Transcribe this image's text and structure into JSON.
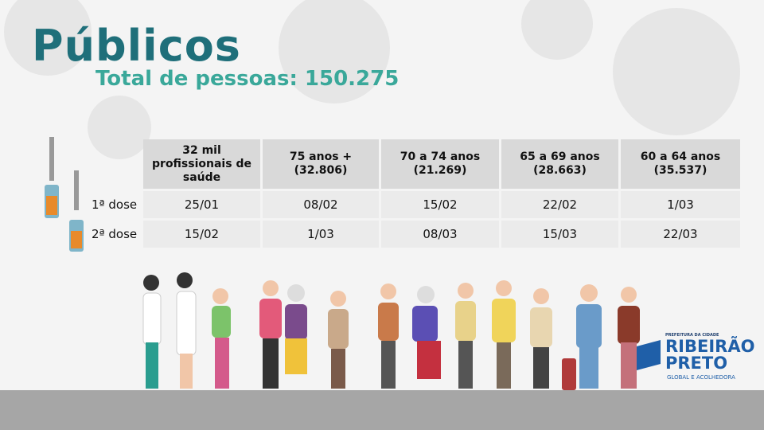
{
  "header": {
    "title": "Públicos",
    "subtitle": "Total de pessoas: 150.275"
  },
  "table": {
    "columns": [
      [
        "32 mil",
        "profissionais de",
        "saúde"
      ],
      [
        "75 anos +",
        "(32.806)"
      ],
      [
        "70 a 74 anos",
        "(21.269)"
      ],
      [
        "65 a 69 anos",
        "(28.663)"
      ],
      [
        "60 a 64 anos",
        "(35.537)"
      ]
    ],
    "rows": [
      {
        "label": "1ª dose",
        "cells": [
          "25/01",
          "08/02",
          "15/02",
          "22/02",
          "1/03"
        ]
      },
      {
        "label": "2ª dose",
        "cells": [
          "15/02",
          "1/03",
          "08/03",
          "15/03",
          "22/03"
        ]
      }
    ]
  },
  "logo": {
    "top": "PREFEITURA DA CIDADE",
    "line1": "RIBEIRÃO",
    "line2": "PRETO",
    "tagline": "GLOBAL E ACOLHEDORA"
  }
}
